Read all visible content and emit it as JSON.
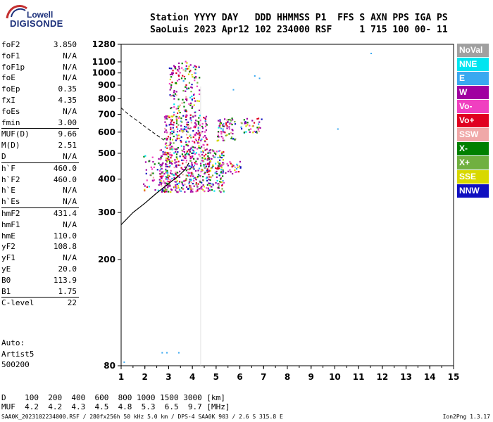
{
  "logo": {
    "top": "Lowell",
    "bottom": "DIGISONDE"
  },
  "header": {
    "line1": "Station YYYY DAY   DDD HHMMSS P1  FFS S AXN PPS IGA PS",
    "line2": "SaoLuis 2023 Apr12 102 234000 RSF     1 715 100 00- 11"
  },
  "params": [
    {
      "name": "foF2",
      "value": "3.850"
    },
    {
      "name": "foF1",
      "value": "N/A"
    },
    {
      "name": "foF1p",
      "value": "N/A"
    },
    {
      "name": "foE",
      "value": "N/A"
    },
    {
      "name": "foEp",
      "value": "0.35"
    },
    {
      "name": "fxI",
      "value": "4.35"
    },
    {
      "name": "foEs",
      "value": "N/A"
    },
    {
      "name": "fmin",
      "value": "3.00"
    },
    {
      "divider": true
    },
    {
      "name": "MUF(D)",
      "value": "9.66"
    },
    {
      "name": "M(D)",
      "value": "2.51"
    },
    {
      "name": "D",
      "value": "N/A"
    },
    {
      "divider": true
    },
    {
      "name": "h`F",
      "value": "460.0"
    },
    {
      "name": "h`F2",
      "value": "460.0"
    },
    {
      "name": "h`E",
      "value": "N/A"
    },
    {
      "name": "h`Es",
      "value": "N/A"
    },
    {
      "divider": true
    },
    {
      "name": "hmF2",
      "value": "431.4"
    },
    {
      "name": "hmF1",
      "value": "N/A"
    },
    {
      "name": "hmE",
      "value": "110.0"
    },
    {
      "name": "yF2",
      "value": "108.8"
    },
    {
      "name": "yF1",
      "value": "N/A"
    },
    {
      "name": "yE",
      "value": "20.0"
    },
    {
      "name": "B0",
      "value": "113.9"
    },
    {
      "name": "B1",
      "value": "1.75"
    },
    {
      "divider": true
    },
    {
      "name": "C-level",
      "value": "22"
    }
  ],
  "side": {
    "auto": "Auto:",
    "artist": "Artist5",
    "code": "500200"
  },
  "legend": [
    {
      "label": "NoVal",
      "color": "#a0a0a0"
    },
    {
      "label": "NNE",
      "color": "#00e5f0"
    },
    {
      "label": "E",
      "color": "#3aa8f0"
    },
    {
      "label": "W",
      "color": "#a000a0"
    },
    {
      "label": "Vo-",
      "color": "#f040c0"
    },
    {
      "label": "Vo+",
      "color": "#e00020"
    },
    {
      "label": "SSW",
      "color": "#f0a8a8"
    },
    {
      "label": "X-",
      "color": "#008000"
    },
    {
      "label": "X+",
      "color": "#70b040"
    },
    {
      "label": "SSE",
      "color": "#d8d800"
    },
    {
      "label": "NNW",
      "color": "#1010c0"
    }
  ],
  "distance_table": {
    "line1": "D    100  200  400  600  800 1000 1500 3000 [km]",
    "line2": "MUF  4.2  4.2  4.3  4.5  4.8  5.3  6.5  9.7 [MHz]"
  },
  "footer": {
    "left": "SAA0K_2023102234000.RSF / 280fx256h 50 kHz 5.0 km / DPS-4 SAA0K 903 / 2.6 S 315.8 E",
    "right": "Ion2Png 1.3.17"
  },
  "chart_data": {
    "type": "scatter",
    "xlabel": "",
    "ylabel": "",
    "xlim": [
      1,
      15
    ],
    "ylim": [
      80,
      1280
    ],
    "y_scale": "log",
    "x_ticks": [
      "1",
      "2",
      "3",
      "4",
      "5",
      "6",
      "7",
      "8",
      "9",
      "10",
      "11",
      "12",
      "13",
      "14",
      "15"
    ],
    "y_ticks": [
      {
        "value": 80,
        "label": "80"
      },
      {
        "value": 200,
        "label": "200"
      },
      {
        "value": 300,
        "label": "300"
      },
      {
        "value": 400,
        "label": "400"
      },
      {
        "value": 500,
        "label": "500"
      },
      {
        "value": 600,
        "label": "600"
      },
      {
        "value": 700,
        "label": "700"
      },
      {
        "value": 800,
        "label": "800"
      },
      {
        "value": 900,
        "label": "900"
      },
      {
        "value": 1000,
        "label": "1000"
      },
      {
        "value": 1100,
        "label": "1100"
      },
      {
        "value": 1280,
        "label": "1280"
      }
    ],
    "echo_clusters": [
      {
        "name": "F2 main trace",
        "fmin": 2.6,
        "fmax": 5.3,
        "hmin": 360,
        "hmax": 520,
        "density": 520
      },
      {
        "name": "upper spread",
        "fmin": 2.8,
        "fmax": 4.6,
        "hmin": 520,
        "hmax": 700,
        "density": 240
      },
      {
        "name": "high spread",
        "fmin": 3.0,
        "fmax": 4.3,
        "hmin": 700,
        "hmax": 1110,
        "density": 150
      },
      {
        "name": "low onset",
        "fmin": 1.9,
        "fmax": 2.7,
        "hmin": 360,
        "hmax": 500,
        "density": 40
      },
      {
        "name": "5.5 MHz group",
        "fmin": 5.0,
        "fmax": 5.8,
        "hmin": 560,
        "hmax": 680,
        "density": 70
      },
      {
        "name": "6.5 MHz group",
        "fmin": 6.0,
        "fmax": 6.9,
        "hmin": 600,
        "hmax": 680,
        "density": 40
      },
      {
        "name": "low tail",
        "fmin": 5.0,
        "fmax": 6.0,
        "hmin": 420,
        "hmax": 470,
        "density": 40
      }
    ],
    "isolated_points": [
      {
        "x": 11.5,
        "y": 1190
      },
      {
        "x": 10.1,
        "y": 620
      },
      {
        "x": 6.6,
        "y": 980
      },
      {
        "x": 6.8,
        "y": 960
      },
      {
        "x": 5.7,
        "y": 870
      },
      {
        "x": 2.7,
        "y": 90
      },
      {
        "x": 2.9,
        "y": 90
      },
      {
        "x": 3.4,
        "y": 90
      },
      {
        "x": 1.1,
        "y": 83
      }
    ],
    "profile_curve": [
      {
        "x": 1.0,
        "y": 270
      },
      {
        "x": 1.5,
        "y": 300
      },
      {
        "x": 2.0,
        "y": 325
      },
      {
        "x": 2.5,
        "y": 355
      },
      {
        "x": 3.0,
        "y": 385
      },
      {
        "x": 3.4,
        "y": 410
      },
      {
        "x": 3.7,
        "y": 435
      },
      {
        "x": 3.85,
        "y": 460
      }
    ],
    "x_trace_curve": [
      {
        "x": 1.0,
        "y": 740
      },
      {
        "x": 1.3,
        "y": 700
      },
      {
        "x": 1.7,
        "y": 660
      },
      {
        "x": 2.1,
        "y": 620
      },
      {
        "x": 2.5,
        "y": 585
      },
      {
        "x": 2.8,
        "y": 560
      }
    ],
    "grid": false
  }
}
